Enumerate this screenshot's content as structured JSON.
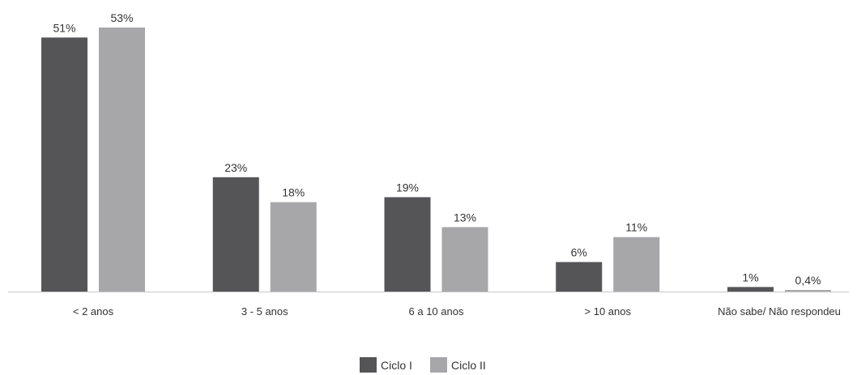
{
  "chart_data": {
    "type": "bar",
    "categories": [
      "< 2 anos",
      "3 - 5 anos",
      "6 a 10 anos",
      "> 10 anos",
      "Não sabe/ Não respondeu"
    ],
    "series": [
      {
        "name": "Ciclo I",
        "values": [
          51,
          23,
          19,
          6,
          1
        ],
        "labels": [
          "51%",
          "23%",
          "19%",
          "6%",
          "1%"
        ],
        "color": "#555557"
      },
      {
        "name": "Ciclo II",
        "values": [
          53,
          18,
          13,
          11,
          0.4
        ],
        "labels": [
          "53%",
          "18%",
          "13%",
          "11%",
          "0,4%"
        ],
        "color": "#a7a7aa"
      }
    ],
    "ylim": [
      0,
      53
    ],
    "grid": false,
    "legend_position": "bottom-center",
    "baseline_color": "#c8c8c8",
    "text_color": "#333333"
  }
}
